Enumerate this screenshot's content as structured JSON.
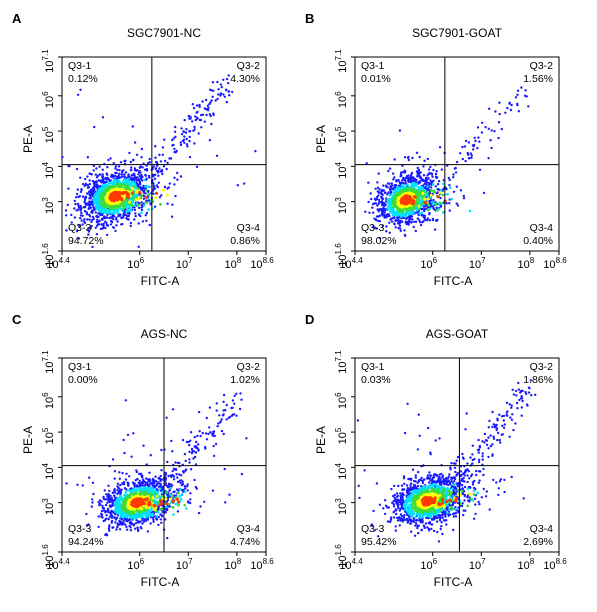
{
  "chart_data": [
    {
      "type": "scatter",
      "panel_letter": "A",
      "title": "SGC7901-NC",
      "xlabel": "FITC-A",
      "ylabel": "PE-A",
      "x_scale": "log",
      "y_scale": "log",
      "xlim_log10": [
        4.4,
        8.6
      ],
      "ylim_log10": [
        1.6,
        7.1
      ],
      "x_ticks": [
        {
          "base": "10",
          "exp": "4.4",
          "value_log10": 4.4
        },
        {
          "base": "10",
          "exp": "6",
          "value_log10": 6
        },
        {
          "base": "10",
          "exp": "7",
          "value_log10": 7
        },
        {
          "base": "10",
          "exp": "8",
          "value_log10": 8
        },
        {
          "base": "10",
          "exp": "8.6",
          "value_log10": 8.6
        }
      ],
      "y_ticks": [
        {
          "base": "10",
          "exp": "1.6",
          "value_log10": 1.6
        },
        {
          "base": "10",
          "exp": "3",
          "value_log10": 3
        },
        {
          "base": "10",
          "exp": "4",
          "value_log10": 4
        },
        {
          "base": "10",
          "exp": "5",
          "value_log10": 5
        },
        {
          "base": "10",
          "exp": "6",
          "value_log10": 6
        },
        {
          "base": "10",
          "exp": "7.1",
          "value_log10": 7.1
        }
      ],
      "gate_log10": {
        "x": 6.25,
        "y": 4.05
      },
      "quadrants": [
        {
          "name": "Q3-1",
          "percent": "0.12%"
        },
        {
          "name": "Q3-2",
          "percent": "4.30%"
        },
        {
          "name": "Q3-3",
          "percent": "94.72%"
        },
        {
          "name": "Q3-4",
          "percent": "0.86%"
        }
      ],
      "population_log10": {
        "main": {
          "cx": 5.5,
          "cy": 3.15,
          "sx": 0.34,
          "sy": 0.42,
          "n": 1300
        },
        "tail": {
          "from": [
            6.0,
            3.3
          ],
          "to": [
            7.85,
            6.4
          ],
          "n": 140,
          "spread": 0.12
        },
        "scatter_n": 60
      },
      "colors": {
        "low": "#1a1aff",
        "mid": "#00e0ff",
        "high1": "#3cdc3c",
        "high2": "#ffff00",
        "peak": "#ff3b00"
      }
    },
    {
      "type": "scatter",
      "panel_letter": "B",
      "title": "SGC7901-GOAT",
      "xlabel": "FITC-A",
      "ylabel": "PE-A",
      "x_scale": "log",
      "y_scale": "log",
      "xlim_log10": [
        4.4,
        8.6
      ],
      "ylim_log10": [
        1.6,
        7.1
      ],
      "x_ticks": [
        {
          "base": "10",
          "exp": "4.4",
          "value_log10": 4.4
        },
        {
          "base": "10",
          "exp": "6",
          "value_log10": 6
        },
        {
          "base": "10",
          "exp": "7",
          "value_log10": 7
        },
        {
          "base": "10",
          "exp": "8",
          "value_log10": 8
        },
        {
          "base": "10",
          "exp": "8.6",
          "value_log10": 8.6
        }
      ],
      "y_ticks": [
        {
          "base": "10",
          "exp": "1.6",
          "value_log10": 1.6
        },
        {
          "base": "10",
          "exp": "3",
          "value_log10": 3
        },
        {
          "base": "10",
          "exp": "4",
          "value_log10": 4
        },
        {
          "base": "10",
          "exp": "5",
          "value_log10": 5
        },
        {
          "base": "10",
          "exp": "6",
          "value_log10": 6
        },
        {
          "base": "10",
          "exp": "7.1",
          "value_log10": 7.1
        }
      ],
      "gate_log10": {
        "x": 6.25,
        "y": 4.05
      },
      "quadrants": [
        {
          "name": "Q3-1",
          "percent": "0.01%"
        },
        {
          "name": "Q3-2",
          "percent": "1.56%"
        },
        {
          "name": "Q3-3",
          "percent": "98.02%"
        },
        {
          "name": "Q3-4",
          "percent": "0.40%"
        }
      ],
      "population_log10": {
        "main": {
          "cx": 5.45,
          "cy": 3.05,
          "sx": 0.3,
          "sy": 0.4,
          "n": 1250
        },
        "tail": {
          "from": [
            6.3,
            3.8
          ],
          "to": [
            7.95,
            6.2
          ],
          "n": 60,
          "spread": 0.12
        },
        "scatter_n": 30
      },
      "colors": {
        "low": "#1a1aff",
        "mid": "#00e0ff",
        "high1": "#3cdc3c",
        "high2": "#ffff00",
        "peak": "#ff3b00"
      }
    },
    {
      "type": "scatter",
      "panel_letter": "C",
      "title": "AGS-NC",
      "xlabel": "FITC-A",
      "ylabel": "PE-A",
      "x_scale": "log",
      "y_scale": "log",
      "xlim_log10": [
        4.4,
        8.6
      ],
      "ylim_log10": [
        1.6,
        7.1
      ],
      "x_ticks": [
        {
          "base": "10",
          "exp": "4.4",
          "value_log10": 4.4
        },
        {
          "base": "10",
          "exp": "6",
          "value_log10": 6
        },
        {
          "base": "10",
          "exp": "7",
          "value_log10": 7
        },
        {
          "base": "10",
          "exp": "8",
          "value_log10": 8
        },
        {
          "base": "10",
          "exp": "8.6",
          "value_log10": 8.6
        }
      ],
      "y_ticks": [
        {
          "base": "10",
          "exp": "1.6",
          "value_log10": 1.6
        },
        {
          "base": "10",
          "exp": "3",
          "value_log10": 3
        },
        {
          "base": "10",
          "exp": "4",
          "value_log10": 4
        },
        {
          "base": "10",
          "exp": "5",
          "value_log10": 5
        },
        {
          "base": "10",
          "exp": "6",
          "value_log10": 6
        },
        {
          "base": "10",
          "exp": "7.1",
          "value_log10": 7.1
        }
      ],
      "gate_log10": {
        "x": 6.5,
        "y": 4.05
      },
      "quadrants": [
        {
          "name": "Q3-1",
          "percent": "0.00%"
        },
        {
          "name": "Q3-2",
          "percent": "1.02%"
        },
        {
          "name": "Q3-3",
          "percent": "94.24%"
        },
        {
          "name": "Q3-4",
          "percent": "4.74%"
        }
      ],
      "population_log10": {
        "main": {
          "cx": 5.95,
          "cy": 3.0,
          "sx": 0.35,
          "sy": 0.38,
          "n": 1300
        },
        "tail": {
          "from": [
            6.4,
            3.2
          ],
          "to": [
            7.95,
            5.9
          ],
          "n": 110,
          "spread": 0.14
        },
        "scatter_n": 60
      },
      "colors": {
        "low": "#1a1aff",
        "mid": "#00e0ff",
        "high1": "#3cdc3c",
        "high2": "#ffff00",
        "peak": "#ff3b00"
      }
    },
    {
      "type": "scatter",
      "panel_letter": "D",
      "title": "AGS-GOAT",
      "xlabel": "FITC-A",
      "ylabel": "PE-A",
      "x_scale": "log",
      "y_scale": "log",
      "xlim_log10": [
        4.4,
        8.6
      ],
      "ylim_log10": [
        1.6,
        7.1
      ],
      "x_ticks": [
        {
          "base": "10",
          "exp": "4.4",
          "value_log10": 4.4
        },
        {
          "base": "10",
          "exp": "6",
          "value_log10": 6
        },
        {
          "base": "10",
          "exp": "7",
          "value_log10": 7
        },
        {
          "base": "10",
          "exp": "8",
          "value_log10": 8
        },
        {
          "base": "10",
          "exp": "8.6",
          "value_log10": 8.6
        }
      ],
      "y_ticks": [
        {
          "base": "10",
          "exp": "1.6",
          "value_log10": 1.6
        },
        {
          "base": "10",
          "exp": "3",
          "value_log10": 3
        },
        {
          "base": "10",
          "exp": "4",
          "value_log10": 4
        },
        {
          "base": "10",
          "exp": "5",
          "value_log10": 5
        },
        {
          "base": "10",
          "exp": "6",
          "value_log10": 6
        },
        {
          "base": "10",
          "exp": "7.1",
          "value_log10": 7.1
        }
      ],
      "gate_log10": {
        "x": 6.55,
        "y": 4.05
      },
      "quadrants": [
        {
          "name": "Q3-1",
          "percent": "0.03%"
        },
        {
          "name": "Q3-2",
          "percent": "1.86%"
        },
        {
          "name": "Q3-3",
          "percent": "95.42%"
        },
        {
          "name": "Q3-4",
          "percent": "2.69%"
        }
      ],
      "population_log10": {
        "main": {
          "cx": 5.9,
          "cy": 3.05,
          "sx": 0.36,
          "sy": 0.4,
          "n": 1300
        },
        "tail": {
          "from": [
            6.4,
            3.4
          ],
          "to": [
            8.0,
            6.3
          ],
          "n": 130,
          "spread": 0.13
        },
        "scatter_n": 60
      },
      "colors": {
        "low": "#1a1aff",
        "mid": "#00e0ff",
        "high1": "#3cdc3c",
        "high2": "#ffff00",
        "peak": "#ff3b00"
      }
    }
  ]
}
